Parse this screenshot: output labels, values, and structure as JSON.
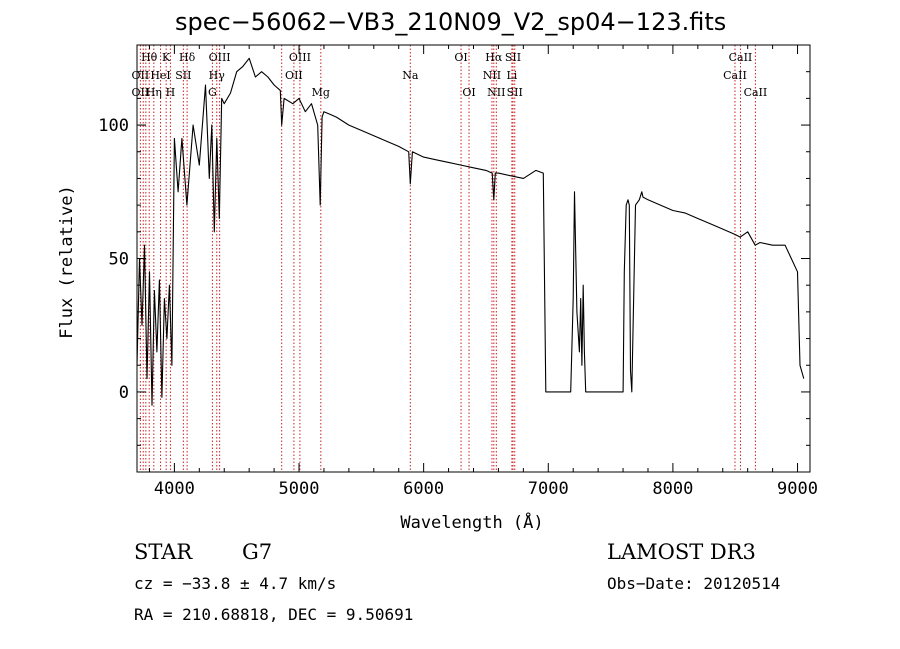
{
  "header": {
    "title": "spec−56062−VB3_210N09_V2_sp04−123.fits"
  },
  "footer": {
    "object_class": "STAR",
    "subclass": "G7",
    "survey": "LAMOST DR3",
    "redshift_text": "cz = −33.8 ± 4.7 km/s",
    "obs_date": "Obs−Date: 20120514",
    "coords": "RA = 210.68818, DEC =    9.50691"
  },
  "chart_data": {
    "type": "line",
    "xlabel": "Wavelength (Å)",
    "ylabel": "Flux (relative)",
    "xlim": [
      3700,
      9100
    ],
    "ylim": [
      -30,
      130
    ],
    "xticks": [
      4000,
      5000,
      6000,
      7000,
      8000,
      9000
    ],
    "yticks": [
      0,
      50,
      100
    ],
    "line_color": "#000000",
    "marker_color": "#cc2222",
    "series": [
      {
        "x": [
          3700,
          3720,
          3740,
          3760,
          3780,
          3800,
          3820,
          3840,
          3860,
          3880,
          3900,
          3920,
          3940,
          3960,
          3980,
          4000,
          4030,
          4060,
          4100,
          4150,
          4200,
          4250,
          4280,
          4300,
          4320,
          4340,
          4360,
          4380,
          4400,
          4450,
          4500,
          4550,
          4600,
          4650,
          4700,
          4750,
          4800,
          4850,
          4861,
          4880,
          4950,
          5000,
          5050,
          5100,
          5150,
          5170,
          5185,
          5200,
          5250,
          5300,
          5400,
          5500,
          5600,
          5700,
          5800,
          5880,
          5893,
          5910,
          6000,
          6100,
          6200,
          6300,
          6400,
          6500,
          6550,
          6563,
          6575,
          6600,
          6700,
          6800,
          6900,
          6960,
          6980,
          7180,
          7200,
          7210,
          7230,
          7250,
          7260,
          7270,
          7280,
          7290,
          7300,
          7600,
          7610,
          7625,
          7640,
          7650,
          7660,
          7670,
          7700,
          7730,
          7750,
          7760,
          7800,
          7900,
          8000,
          8100,
          8200,
          8300,
          8400,
          8500,
          8540,
          8600,
          8660,
          8700,
          8800,
          8900,
          8950,
          9000,
          9020,
          9050
        ],
        "y": [
          10,
          50,
          25,
          55,
          5,
          45,
          -5,
          38,
          15,
          42,
          -2,
          35,
          20,
          40,
          10,
          95,
          75,
          95,
          70,
          100,
          85,
          115,
          80,
          100,
          60,
          95,
          65,
          110,
          108,
          112,
          120,
          122,
          125,
          118,
          120,
          118,
          115,
          113,
          100,
          110,
          108,
          110,
          105,
          108,
          100,
          70,
          103,
          105,
          104,
          103,
          100,
          98,
          96,
          94,
          92,
          90,
          78,
          90,
          88,
          87,
          86,
          85,
          84,
          83,
          82,
          72,
          82,
          82,
          81,
          80,
          83,
          82,
          0,
          0,
          35,
          75,
          30,
          15,
          35,
          10,
          40,
          15,
          0,
          0,
          45,
          70,
          72,
          70,
          8,
          0,
          70,
          72,
          75,
          73,
          72,
          70,
          68,
          67,
          65,
          63,
          61,
          59,
          58,
          60,
          55,
          56,
          55,
          55,
          50,
          45,
          10,
          5
        ]
      }
    ],
    "annotations": [
      {
        "label": "Hθ",
        "wavelength": 3798,
        "row": 1
      },
      {
        "label": "K",
        "wavelength": 3934,
        "row": 1
      },
      {
        "label": "Hδ",
        "wavelength": 4102,
        "row": 1
      },
      {
        "label": "OIII",
        "wavelength": 4363,
        "row": 1
      },
      {
        "label": "OIII",
        "wavelength": 5007,
        "row": 1
      },
      {
        "label": "OI",
        "wavelength": 6300,
        "row": 1
      },
      {
        "label": "Hα",
        "wavelength": 6563,
        "row": 1
      },
      {
        "label": "SII",
        "wavelength": 6717,
        "row": 1
      },
      {
        "label": "CaII",
        "wavelength": 8542,
        "row": 1
      },
      {
        "label": "OII",
        "wavelength": 3727,
        "row": 2
      },
      {
        "label": "HeI",
        "wavelength": 3889,
        "row": 2
      },
      {
        "label": "SII",
        "wavelength": 4072,
        "row": 2
      },
      {
        "label": "Hγ",
        "wavelength": 4340,
        "row": 2
      },
      {
        "label": "OII",
        "wavelength": 4959,
        "row": 2
      },
      {
        "label": "Na",
        "wavelength": 5893,
        "row": 2
      },
      {
        "label": "NII",
        "wavelength": 6548,
        "row": 2
      },
      {
        "label": "Li",
        "wavelength": 6708,
        "row": 2
      },
      {
        "label": "CaII",
        "wavelength": 8498,
        "row": 2
      },
      {
        "label": "OII",
        "wavelength": 3727,
        "row": 3
      },
      {
        "label": "Hη",
        "wavelength": 3835,
        "row": 3
      },
      {
        "label": "H",
        "wavelength": 3968,
        "row": 3
      },
      {
        "label": "G",
        "wavelength": 4305,
        "row": 3
      },
      {
        "label": "Mg",
        "wavelength": 5175,
        "row": 3
      },
      {
        "label": "OI",
        "wavelength": 6364,
        "row": 3
      },
      {
        "label": "NII",
        "wavelength": 6583,
        "row": 3
      },
      {
        "label": "SII",
        "wavelength": 6731,
        "row": 3
      },
      {
        "label": "CaII",
        "wavelength": 8662,
        "row": 3
      }
    ],
    "marker_wavelengths": [
      3727,
      3750,
      3771,
      3798,
      3835,
      3889,
      3934,
      3968,
      4072,
      4102,
      4305,
      4340,
      4363,
      4861,
      4959,
      5007,
      5175,
      5893,
      6300,
      6364,
      6548,
      6563,
      6583,
      6708,
      6717,
      6731,
      8498,
      8542,
      8662
    ]
  }
}
